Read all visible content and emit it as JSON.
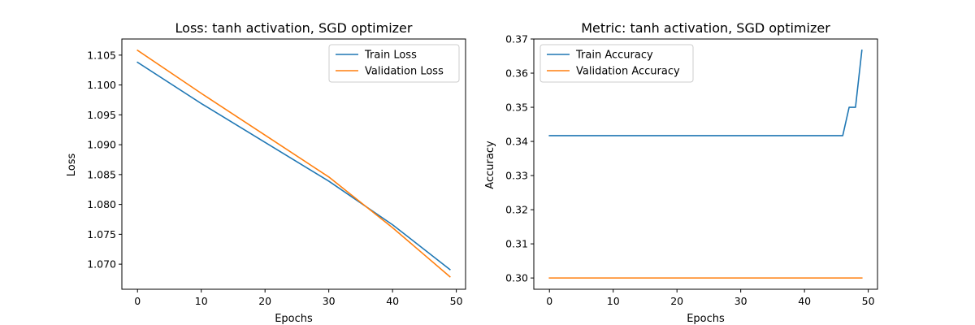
{
  "colors": {
    "train": "#1f77b4",
    "validation": "#ff7f0e"
  },
  "chart_data": [
    {
      "type": "line",
      "title": "Loss: tanh activation, SGD optimizer",
      "xlabel": "Epochs",
      "ylabel": "Loss",
      "xlim": [
        -2.45,
        51.45
      ],
      "ylim": [
        1.0658,
        1.1077
      ],
      "xticks": [
        0,
        10,
        20,
        30,
        40,
        50
      ],
      "yticks": [
        1.07,
        1.075,
        1.08,
        1.085,
        1.09,
        1.095,
        1.1,
        1.105
      ],
      "ytick_labels": [
        "1.070",
        "1.075",
        "1.080",
        "1.085",
        "1.090",
        "1.095",
        "1.100",
        "1.105"
      ],
      "xtick_labels": [
        "0",
        "10",
        "20",
        "30",
        "40",
        "50"
      ],
      "legend_position": "top-right",
      "series": [
        {
          "name": "Train Loss",
          "color": "#1f77b4",
          "points": [
            [
              0,
              1.1038
            ],
            [
              10,
              1.0969
            ],
            [
              20,
              1.0904
            ],
            [
              30,
              1.0839
            ],
            [
              40,
              1.0766
            ],
            [
              49,
              1.0691
            ]
          ]
        },
        {
          "name": "Validation Loss",
          "color": "#ff7f0e",
          "points": [
            [
              0,
              1.1058
            ],
            [
              10,
              1.0986
            ],
            [
              20,
              1.0916
            ],
            [
              30,
              1.0846
            ],
            [
              40,
              1.0761
            ],
            [
              49,
              1.0679
            ]
          ]
        }
      ]
    },
    {
      "type": "line",
      "title": "Metric: tanh activation, SGD optimizer",
      "xlabel": "Epochs",
      "ylabel": "Accuracy",
      "xlim": [
        -2.45,
        51.45
      ],
      "ylim": [
        0.2967,
        0.37
      ],
      "xticks": [
        0,
        10,
        20,
        30,
        40,
        50
      ],
      "yticks": [
        0.3,
        0.31,
        0.32,
        0.33,
        0.34,
        0.35,
        0.36,
        0.37
      ],
      "ytick_labels": [
        "0.30",
        "0.31",
        "0.32",
        "0.33",
        "0.34",
        "0.35",
        "0.36",
        "0.37"
      ],
      "xtick_labels": [
        "0",
        "10",
        "20",
        "30",
        "40",
        "50"
      ],
      "legend_position": "top-left",
      "series": [
        {
          "name": "Train Accuracy",
          "color": "#1f77b4",
          "points": [
            [
              0,
              0.3417
            ],
            [
              46,
              0.3417
            ],
            [
              47,
              0.35
            ],
            [
              48,
              0.35
            ],
            [
              49,
              0.3667
            ]
          ]
        },
        {
          "name": "Validation Accuracy",
          "color": "#ff7f0e",
          "points": [
            [
              0,
              0.3
            ],
            [
              49,
              0.3
            ]
          ]
        }
      ]
    }
  ]
}
